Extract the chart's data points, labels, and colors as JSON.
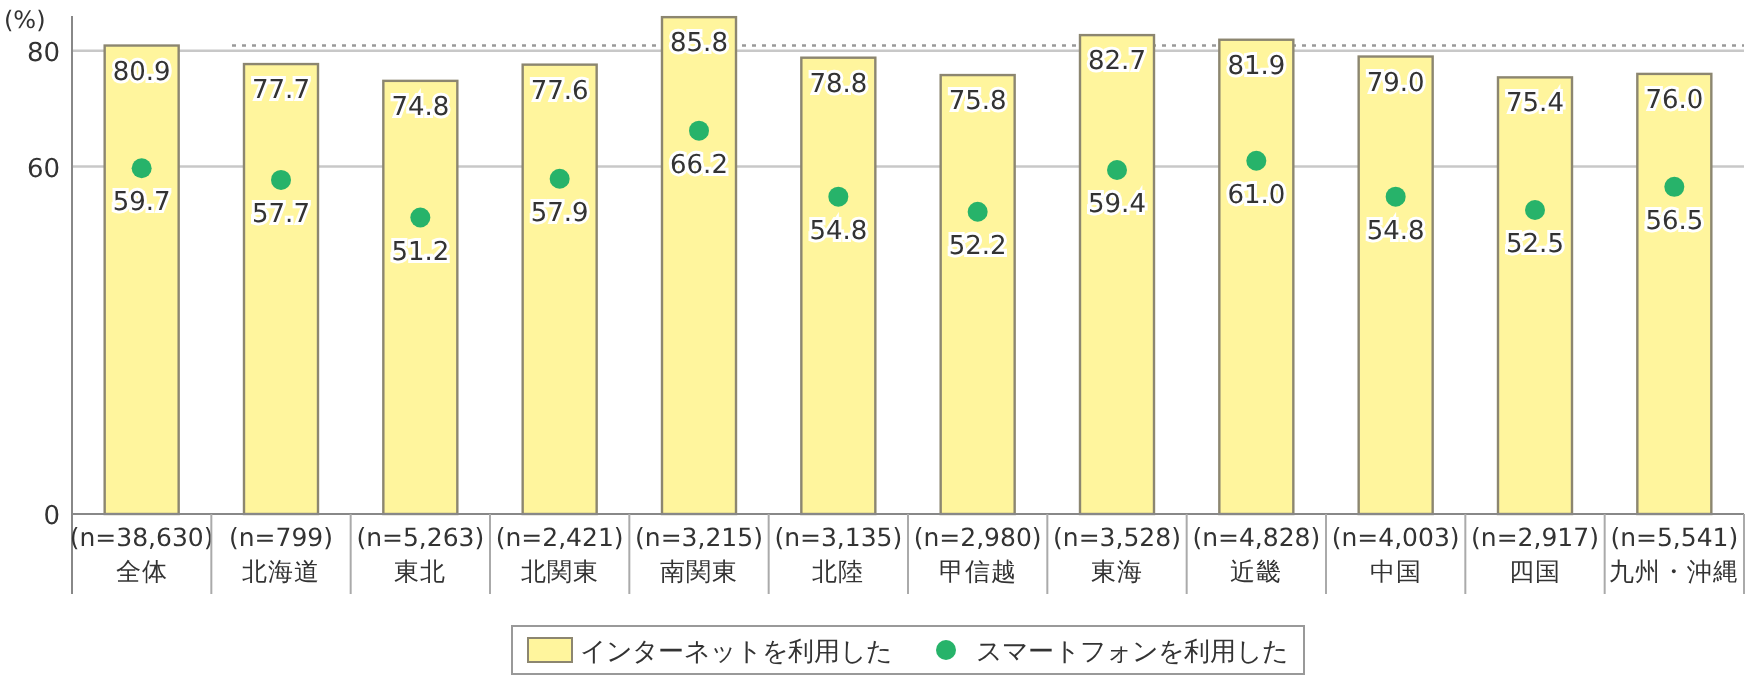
{
  "chart_data": {
    "type": "bar",
    "annotations": [
      "(%)"
    ],
    "categories": [
      "(n=38,630)\n全体",
      "(n=799)\n北海道",
      "(n=5,263)\n東北",
      "(n=2,421)\n北関東",
      "(n=3,215)\n南関東",
      "(n=3,135)\n北陸",
      "(n=2,980)\n甲信越",
      "(n=3,528)\n東海",
      "(n=4,828)\n近畿",
      "(n=4,003)\n中国",
      "(n=2,917)\n四国",
      "(n=5,541)\n九州・沖縄"
    ],
    "series": [
      {
        "name": "インターネットを利用した",
        "color": "#fff59d",
        "values": [
          80.9,
          77.7,
          74.8,
          77.6,
          85.8,
          78.8,
          75.8,
          82.7,
          81.9,
          79.0,
          75.4,
          76.0
        ],
        "value_labels": [
          "80.9",
          "77.7",
          "74.8",
          "77.6",
          "85.8",
          "78.8",
          "75.8",
          "82.7",
          "81.9",
          "79.0",
          "75.4",
          "76.0"
        ]
      },
      {
        "name": "スマートフォンを利用した",
        "type": "scatter",
        "color": "#27b36a",
        "marker": "circle",
        "values": [
          59.7,
          57.7,
          51.2,
          57.9,
          66.2,
          54.8,
          52.2,
          59.4,
          61.0,
          54.8,
          52.5,
          56.5
        ],
        "value_labels": [
          "59.7",
          "57.7",
          "51.2",
          "57.9",
          "66.2",
          "54.8",
          "52.2",
          "59.4",
          "61.0",
          "54.8",
          "52.5",
          "56.5"
        ]
      }
    ],
    "ylim": [
      0,
      86
    ],
    "yticks": [
      0,
      60,
      80
    ],
    "grid": "y",
    "legend": "bottom",
    "ref_lines": [
      {
        "axis": "y",
        "value": 80.9,
        "color": "#999999",
        "line_style": "dotted"
      }
    ]
  }
}
